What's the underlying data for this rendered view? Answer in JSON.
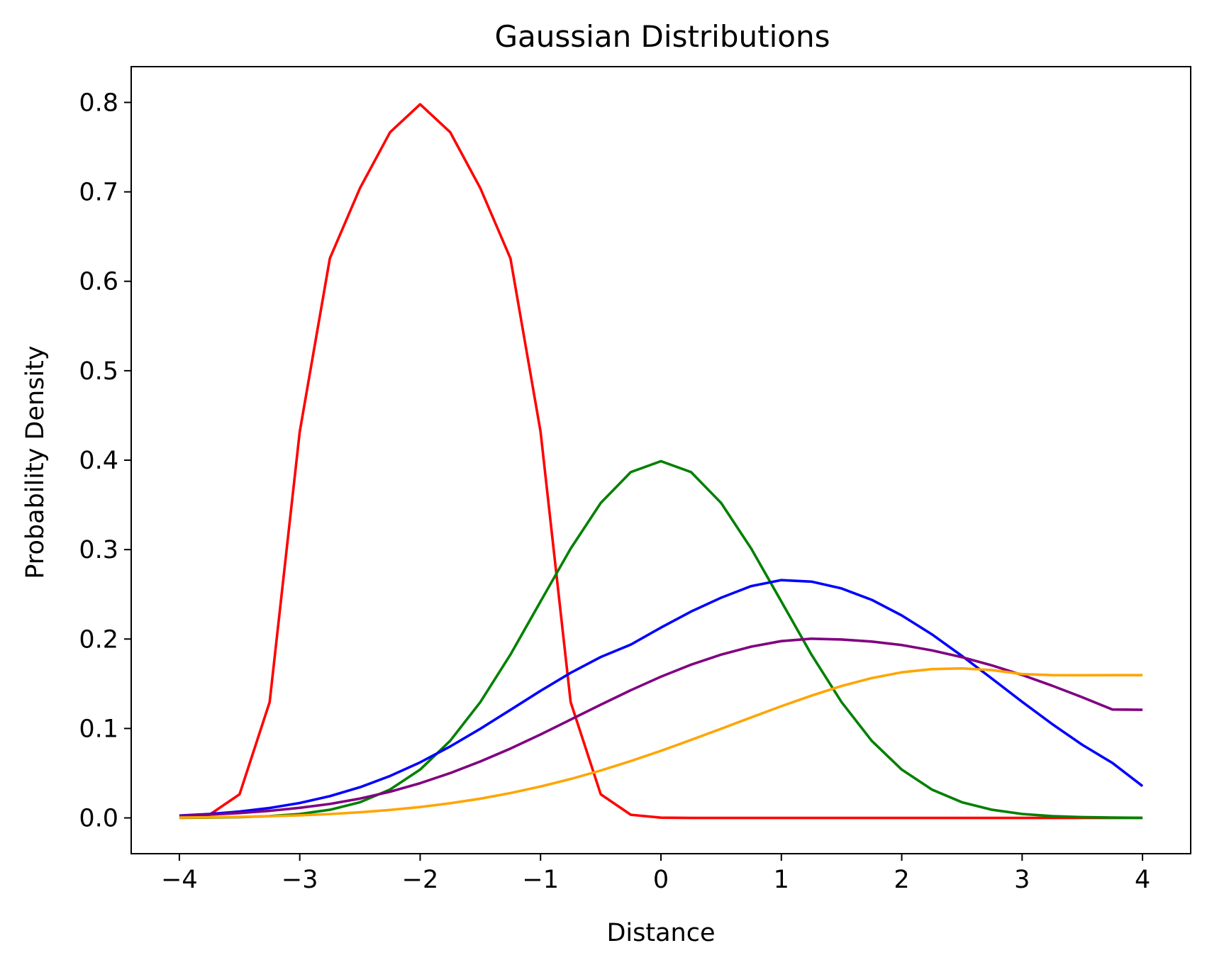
{
  "chart_data": {
    "type": "line",
    "title": "Gaussian Distributions",
    "xlabel": "Distance",
    "ylabel": "Probability Density",
    "xlim": [
      -4.4,
      4.4
    ],
    "ylim": [
      -0.04,
      0.84
    ],
    "xticks": [
      -4,
      -3,
      -2,
      -1,
      0,
      1,
      2,
      3,
      4
    ],
    "xtick_labels": [
      "−4",
      "−3",
      "−2",
      "−1",
      "0",
      "1",
      "2",
      "3",
      "4"
    ],
    "yticks": [
      0.0,
      0.1,
      0.2,
      0.3,
      0.4,
      0.5,
      0.6,
      0.7,
      0.8
    ],
    "ytick_labels": [
      "0.0",
      "0.1",
      "0.2",
      "0.3",
      "0.4",
      "0.5",
      "0.6",
      "0.7",
      "0.8"
    ],
    "grid": false,
    "x": [
      -4,
      -3.75,
      -3.5,
      -3.25,
      -3,
      -2.75,
      -2.5,
      -2.25,
      -2,
      -1.75,
      -1.5,
      -1.25,
      -1,
      -0.75,
      -0.5,
      -0.25,
      0,
      0.25,
      0.5,
      0.75,
      1,
      1.25,
      1.5,
      1.75,
      2,
      2.25,
      2.5,
      2.75,
      3,
      3.25,
      3.5,
      3.75,
      4
    ],
    "series": [
      {
        "color": "#ff0000",
        "values": [
          0.0003,
          0.0035,
          0.0264,
          0.1295,
          0.4319,
          0.6256,
          0.7041,
          0.7666,
          0.7979,
          0.7666,
          0.7041,
          0.6256,
          0.4319,
          0.1295,
          0.0264,
          0.0035,
          0.0003,
          0.0,
          0.0,
          0.0,
          0.0,
          0.0,
          0.0,
          0.0,
          0.0,
          0.0,
          0.0,
          0.0,
          0.0,
          0.0,
          0.0,
          0.0,
          0.0
        ]
      },
      {
        "color": "#008000",
        "values": [
          0.0001,
          0.0004,
          0.0009,
          0.002,
          0.0044,
          0.0091,
          0.0175,
          0.0317,
          0.054,
          0.0863,
          0.1295,
          0.1826,
          0.242,
          0.3011,
          0.3521,
          0.3867,
          0.3989,
          0.3867,
          0.3521,
          0.3011,
          0.242,
          0.1826,
          0.1295,
          0.0863,
          0.054,
          0.0317,
          0.0175,
          0.0091,
          0.0044,
          0.002,
          0.0009,
          0.0004,
          0.0001
        ]
      },
      {
        "color": "#0000ff",
        "values": [
          0.0026,
          0.0044,
          0.0071,
          0.0111,
          0.0167,
          0.0243,
          0.0343,
          0.0469,
          0.0621,
          0.0799,
          0.0997,
          0.1208,
          0.1421,
          0.1622,
          0.1799,
          0.1938,
          0.2128,
          0.2307,
          0.2462,
          0.2592,
          0.2659,
          0.2642,
          0.2566,
          0.2439,
          0.2264,
          0.2053,
          0.1811,
          0.1557,
          0.1298,
          0.1049,
          0.0817,
          0.0614,
          0.0356
        ]
      },
      {
        "color": "#800080",
        "values": [
          0.0022,
          0.0036,
          0.0054,
          0.0079,
          0.0113,
          0.0156,
          0.0216,
          0.0293,
          0.0388,
          0.0501,
          0.0631,
          0.0775,
          0.0933,
          0.1099,
          0.1266,
          0.1428,
          0.1579,
          0.1713,
          0.1826,
          0.1915,
          0.1977,
          0.2004,
          0.1995,
          0.1972,
          0.1933,
          0.1873,
          0.1797,
          0.1705,
          0.1598,
          0.1478,
          0.1349,
          0.1212,
          0.1209
        ]
      },
      {
        "color": "#ffa500",
        "values": [
          0.0004,
          0.0007,
          0.0012,
          0.0019,
          0.0029,
          0.0043,
          0.0063,
          0.0089,
          0.0122,
          0.0164,
          0.0215,
          0.0278,
          0.0351,
          0.0435,
          0.053,
          0.0636,
          0.075,
          0.0872,
          0.0997,
          0.1124,
          0.1249,
          0.1367,
          0.1475,
          0.1563,
          0.1628,
          0.1664,
          0.1672,
          0.1653,
          0.1608,
          0.1596,
          0.1595,
          0.1596,
          0.1596
        ]
      }
    ]
  }
}
